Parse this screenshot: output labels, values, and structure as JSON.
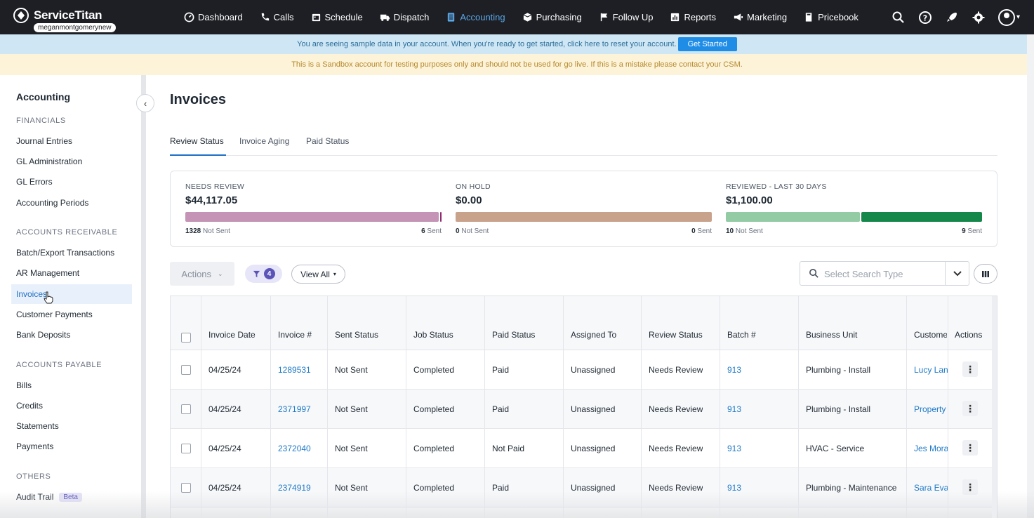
{
  "app": {
    "brand": "ServiceTitan",
    "username": "meganmontgomerynew"
  },
  "nav": {
    "items": [
      {
        "label": "Dashboard",
        "icon": "dashboard-icon"
      },
      {
        "label": "Calls",
        "icon": "phone-icon"
      },
      {
        "label": "Schedule",
        "icon": "calendar-icon"
      },
      {
        "label": "Dispatch",
        "icon": "truck-icon"
      },
      {
        "label": "Accounting",
        "icon": "accounting-icon",
        "active": true
      },
      {
        "label": "Purchasing",
        "icon": "box-icon"
      },
      {
        "label": "Follow Up",
        "icon": "flag-icon"
      },
      {
        "label": "Reports",
        "icon": "chart-icon"
      },
      {
        "label": "Marketing",
        "icon": "megaphone-icon"
      },
      {
        "label": "Pricebook",
        "icon": "book-icon"
      }
    ],
    "right_icons": [
      "search-icon",
      "help-icon",
      "rocket-icon",
      "gear-icon",
      "user-avatar-icon"
    ]
  },
  "banners": {
    "sample": "You are seeing sample data in your account. When you're ready to get started, click here to reset your account.",
    "get_started": "Get Started",
    "sandbox": "This is a Sandbox account for testing purposes only and should not be used for go live. If this is a mistake please contact your CSM."
  },
  "sidebar": {
    "title": "Accounting",
    "sections": [
      {
        "heading": "FINANCIALS",
        "items": [
          "Journal Entries",
          "GL Administration",
          "GL Errors",
          "Accounting Periods"
        ]
      },
      {
        "heading": "ACCOUNTS RECEIVABLE",
        "items": [
          "Batch/Export Transactions",
          "AR Management",
          "Invoices",
          "Customer Payments",
          "Bank Deposits"
        ]
      },
      {
        "heading": "ACCOUNTS PAYABLE",
        "items": [
          "Bills",
          "Credits",
          "Statements",
          "Payments"
        ]
      },
      {
        "heading": "OTHERS",
        "items": [
          "Audit Trail"
        ]
      }
    ],
    "active_item": "Invoices",
    "beta_label": "Beta"
  },
  "main": {
    "title": "Invoices",
    "tabs": [
      "Review Status",
      "Invoice Aging",
      "Paid Status"
    ],
    "active_tab": "Review Status"
  },
  "summary": [
    {
      "label": "NEEDS REVIEW",
      "value": "$44,117.05",
      "left_count": "1328",
      "left_text": "Not Sent",
      "right_count": "6",
      "right_text": "Sent",
      "fill_fraction": 0.995,
      "color_main": "#c493b6",
      "color_sent": "#8e2c6f"
    },
    {
      "label": "ON HOLD",
      "value": "$0.00",
      "left_count": "0",
      "left_text": "Not Sent",
      "right_count": "0",
      "right_text": "Sent",
      "fill_fraction": 1.0,
      "color_main": "#c9a28b",
      "color_sent": "#c9a28b"
    },
    {
      "label": "REVIEWED - LAST 30 DAYS",
      "value": "$1,100.00",
      "left_count": "10",
      "left_text": "Not Sent",
      "right_count": "9",
      "right_text": "Sent",
      "fill_fraction": 0.53,
      "color_main": "#93cba5",
      "color_sent": "#14884a"
    }
  ],
  "toolbar": {
    "actions_label": "Actions",
    "filter_count": "4",
    "view_all_label": "View All",
    "search_placeholder": "Select Search Type"
  },
  "table": {
    "columns": [
      "Invoice Date",
      "Invoice #",
      "Sent Status",
      "Job Status",
      "Paid Status",
      "Assigned To",
      "Review Status",
      "Batch #",
      "Business Unit",
      "Customer",
      "Actions"
    ],
    "column_header_display": [
      "Invoice Date",
      "Invoice #",
      "Sent Status",
      "Job Status",
      "Paid Status",
      "Assigned To",
      "Review Status",
      "Batch #",
      "Business Unit",
      "Custome",
      "Actions"
    ],
    "rows": [
      {
        "date": "04/25/24",
        "invoice": "1289531",
        "sent": "Not Sent",
        "job": "Completed",
        "paid": "Paid",
        "assigned": "Unassigned",
        "review": "Needs Review",
        "batch": "913",
        "unit": "Plumbing - Install",
        "customer": "Lucy Lan"
      },
      {
        "date": "04/25/24",
        "invoice": "2371997",
        "sent": "Not Sent",
        "job": "Completed",
        "paid": "Paid",
        "assigned": "Unassigned",
        "review": "Needs Review",
        "batch": "913",
        "unit": "Plumbing - Install",
        "customer": "Property"
      },
      {
        "date": "04/25/24",
        "invoice": "2372040",
        "sent": "Not Sent",
        "job": "Completed",
        "paid": "Not Paid",
        "assigned": "Unassigned",
        "review": "Needs Review",
        "batch": "913",
        "unit": "HVAC - Service",
        "customer": "Jes Mora"
      },
      {
        "date": "04/25/24",
        "invoice": "2374919",
        "sent": "Not Sent",
        "job": "Completed",
        "paid": "Paid",
        "assigned": "Unassigned",
        "review": "Needs Review",
        "batch": "913",
        "unit": "Plumbing - Maintenance",
        "customer": "Sara Eva"
      }
    ]
  }
}
